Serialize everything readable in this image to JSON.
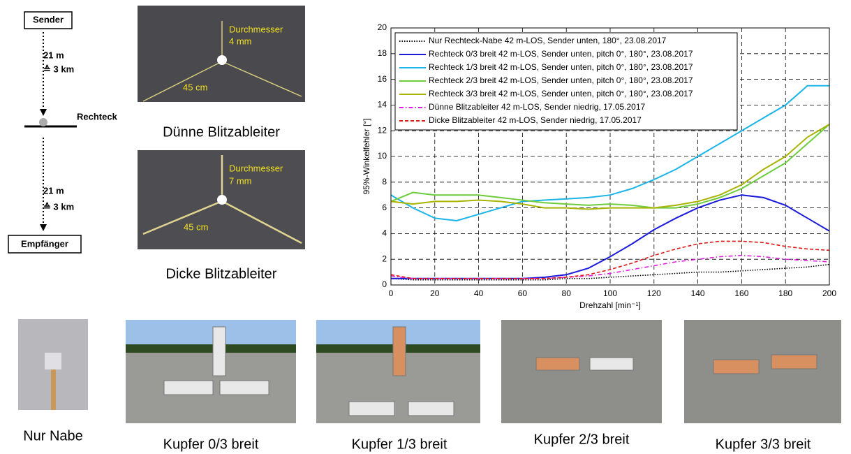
{
  "diagram": {
    "sender": "Sender",
    "distance1": "21 m",
    "equiv1": "≙ 3 km",
    "target": "Rechteck",
    "distance2": "21 m",
    "equiv2": "≙ 3 km",
    "receiver": "Empfänger"
  },
  "photos_top": [
    {
      "caption": "Dünne Blitzableiter",
      "label1": "Durchmesser",
      "label2": "4 mm",
      "length": "45 cm"
    },
    {
      "caption": "Dicke Blitzableiter",
      "label1": "Durchmesser",
      "label2": "7 mm",
      "length": "45 cm"
    }
  ],
  "photos_bottom": [
    "Nur Nabe",
    "Kupfer 0/3 breit",
    "Kupfer 1/3 breit",
    "Kupfer 2/3 breit",
    "Kupfer 3/3 breit"
  ],
  "chart_data": {
    "type": "line",
    "xlabel": "Drehzahl [min⁻¹]",
    "ylabel": "95%-Winkelfehler [°]",
    "x": [
      0,
      10,
      20,
      30,
      40,
      50,
      60,
      70,
      80,
      90,
      100,
      110,
      120,
      130,
      140,
      150,
      160,
      170,
      180,
      190,
      200
    ],
    "xlim": [
      0,
      200
    ],
    "xticks": [
      0,
      20,
      40,
      60,
      80,
      100,
      120,
      140,
      160,
      180,
      200
    ],
    "ylim": [
      0,
      20
    ],
    "yticks": [
      0,
      2,
      4,
      6,
      8,
      10,
      12,
      14,
      16,
      18,
      20
    ],
    "grid": true,
    "legend": "upper left",
    "series": [
      {
        "name": "Nur Rechteck-Nabe 42 m-LOS, Sender unten, 180°, 23.08.2017",
        "color": "#000000",
        "style": "dotted",
        "values": [
          0.5,
          0.4,
          0.4,
          0.4,
          0.4,
          0.4,
          0.4,
          0.4,
          0.5,
          0.5,
          0.6,
          0.7,
          0.8,
          0.9,
          1.0,
          1.0,
          1.1,
          1.2,
          1.3,
          1.4,
          1.6
        ]
      },
      {
        "name": "Rechteck 0/3 breit 42 m-LOS, Sender unten, pitch 0°, 180°, 23.08.2017",
        "color": "#1a1adc",
        "style": "solid",
        "values": [
          0.5,
          0.5,
          0.5,
          0.5,
          0.5,
          0.5,
          0.5,
          0.6,
          0.8,
          1.3,
          2.2,
          3.2,
          4.3,
          5.2,
          6.0,
          6.6,
          7.0,
          6.8,
          6.2,
          5.2,
          4.2
        ]
      },
      {
        "name": "Rechteck 1/3 breit 42 m-LOS, Sender unten, pitch 0°, 180°, 23.08.2017",
        "color": "#1ab4e8",
        "style": "solid",
        "values": [
          7.0,
          6.0,
          5.2,
          5.0,
          5.5,
          6.0,
          6.5,
          6.6,
          6.7,
          6.8,
          7.0,
          7.5,
          8.2,
          9.0,
          10.0,
          11.0,
          12.0,
          13.0,
          14.0,
          15.5,
          15.5
        ]
      },
      {
        "name": "Rechteck 2/3 breit 42 m-LOS, Sender unten, pitch 0°, 180°, 23.08.2017",
        "color": "#6ccc3c",
        "style": "solid",
        "values": [
          6.5,
          7.2,
          7.0,
          7.0,
          7.0,
          6.8,
          6.6,
          6.4,
          6.3,
          6.2,
          6.3,
          6.2,
          6.0,
          6.0,
          6.3,
          6.8,
          7.5,
          8.5,
          9.5,
          11.0,
          12.5
        ]
      },
      {
        "name": "Rechteck 3/3 breit 42 m-LOS, Sender unten, pitch 0°, 180°, 23.08.2017",
        "color": "#a8b400",
        "style": "solid",
        "values": [
          6.5,
          6.3,
          6.5,
          6.5,
          6.6,
          6.5,
          6.3,
          6.0,
          6.0,
          5.9,
          6.0,
          6.0,
          6.0,
          6.2,
          6.5,
          7.0,
          7.8,
          9.0,
          10.0,
          11.5,
          12.5
        ]
      },
      {
        "name": "Dünne Blitzableiter 42 m-LOS, Sender niedrig, 17.05.2017",
        "color": "#e020e0",
        "style": "dashdot",
        "values": [
          0.7,
          0.5,
          0.5,
          0.5,
          0.5,
          0.5,
          0.5,
          0.5,
          0.6,
          0.7,
          0.9,
          1.2,
          1.5,
          1.8,
          2.0,
          2.2,
          2.3,
          2.2,
          2.0,
          1.9,
          1.8
        ]
      },
      {
        "name": "Dicke Blitzableiter 42 m-LOS, Sender niedrig, 17.05.2017",
        "color": "#e01818",
        "style": "dashed",
        "values": [
          0.8,
          0.5,
          0.5,
          0.5,
          0.5,
          0.5,
          0.5,
          0.5,
          0.6,
          0.8,
          1.2,
          1.7,
          2.3,
          2.8,
          3.2,
          3.4,
          3.4,
          3.3,
          3.0,
          2.8,
          2.7
        ]
      }
    ]
  }
}
